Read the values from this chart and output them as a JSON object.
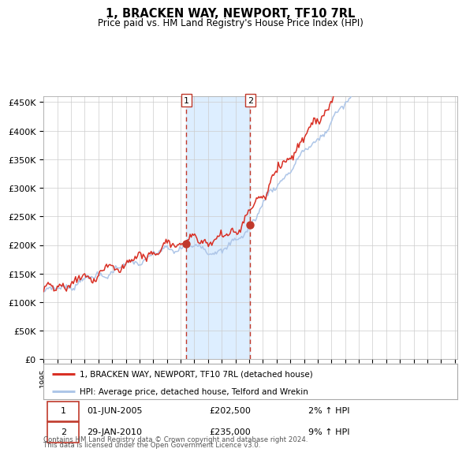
{
  "title": "1, BRACKEN WAY, NEWPORT, TF10 7RL",
  "subtitle": "Price paid vs. HM Land Registry's House Price Index (HPI)",
  "ylim": [
    0,
    460000
  ],
  "yticks": [
    0,
    50000,
    100000,
    150000,
    200000,
    250000,
    300000,
    350000,
    400000,
    450000
  ],
  "ytick_labels": [
    "£0",
    "£50K",
    "£100K",
    "£150K",
    "£200K",
    "£250K",
    "£300K",
    "£350K",
    "£400K",
    "£450K"
  ],
  "hpi_color": "#aec6e8",
  "price_color": "#d93025",
  "dot_color": "#c0392b",
  "shade_color": "#ddeeff",
  "vline_color": "#c0392b",
  "background_color": "#ffffff",
  "grid_color": "#cccccc",
  "transaction1_year": 2005.42,
  "transaction1_value": 202500,
  "transaction2_year": 2010.08,
  "transaction2_value": 235000,
  "legend_label_price": "1, BRACKEN WAY, NEWPORT, TF10 7RL (detached house)",
  "legend_label_hpi": "HPI: Average price, detached house, Telford and Wrekin",
  "footnote_line1": "Contains HM Land Registry data © Crown copyright and database right 2024.",
  "footnote_line2": "This data is licensed under the Open Government Licence v3.0.",
  "table_row1": [
    "1",
    "01-JUN-2005",
    "£202,500",
    "2% ↑ HPI"
  ],
  "table_row2": [
    "2",
    "29-JAN-2010",
    "£235,000",
    "9% ↑ HPI"
  ],
  "year_start": 1995,
  "year_end": 2025
}
